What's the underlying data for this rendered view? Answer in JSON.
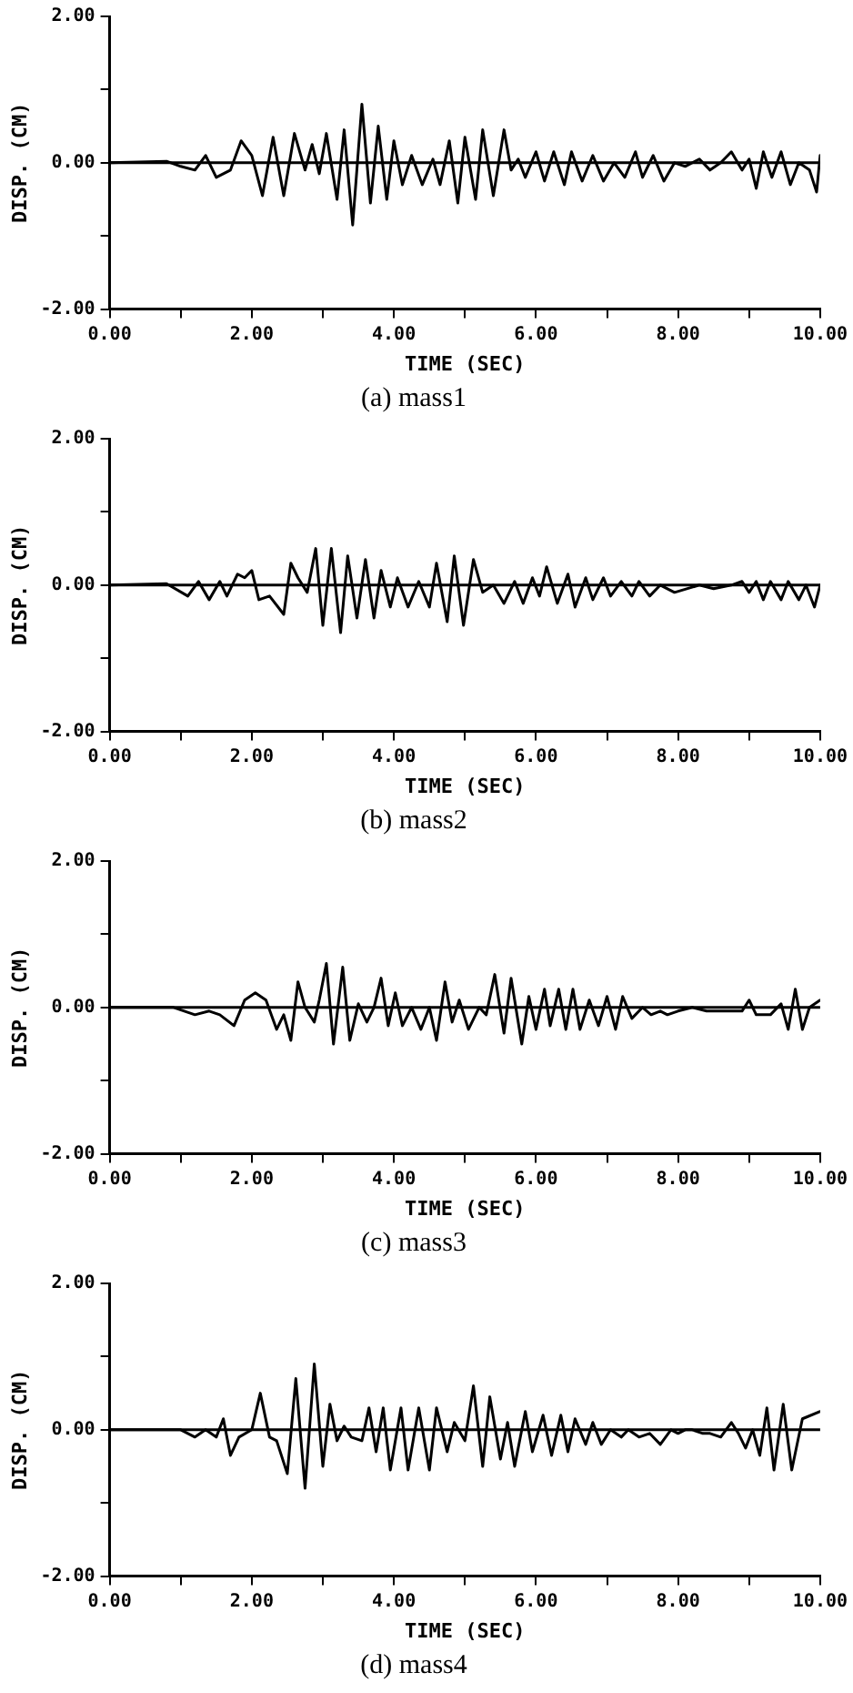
{
  "chart_data": [
    {
      "type": "line",
      "title": "(a) mass1",
      "xlabel": "TIME (SEC)",
      "ylabel": "DISP. (CM)",
      "x": [
        0,
        0.8,
        1.0,
        1.2,
        1.35,
        1.5,
        1.7,
        1.85,
        2.0,
        2.15,
        2.3,
        2.45,
        2.6,
        2.75,
        2.85,
        2.95,
        3.05,
        3.2,
        3.3,
        3.42,
        3.55,
        3.67,
        3.78,
        3.9,
        4.0,
        4.12,
        4.25,
        4.4,
        4.55,
        4.65,
        4.78,
        4.9,
        5.0,
        5.15,
        5.25,
        5.4,
        5.55,
        5.65,
        5.75,
        5.85,
        6.0,
        6.12,
        6.25,
        6.4,
        6.5,
        6.65,
        6.8,
        6.95,
        7.1,
        7.25,
        7.4,
        7.5,
        7.65,
        7.8,
        7.95,
        8.1,
        8.3,
        8.45,
        8.6,
        8.75,
        8.9,
        9.0,
        9.1,
        9.2,
        9.32,
        9.45,
        9.58,
        9.7,
        9.85,
        9.95,
        10
      ],
      "series": [
        {
          "color": "#000000",
          "values": [
            0,
            0.02,
            -0.05,
            -0.1,
            0.1,
            -0.2,
            -0.1,
            0.3,
            0.1,
            -0.45,
            0.35,
            -0.45,
            0.4,
            -0.1,
            0.25,
            -0.15,
            0.4,
            -0.5,
            0.45,
            -0.85,
            0.8,
            -0.55,
            0.5,
            -0.5,
            0.3,
            -0.3,
            0.1,
            -0.3,
            0.05,
            -0.3,
            0.3,
            -0.55,
            0.35,
            -0.5,
            0.45,
            -0.45,
            0.45,
            -0.1,
            0.05,
            -0.2,
            0.15,
            -0.25,
            0.15,
            -0.3,
            0.15,
            -0.25,
            0.1,
            -0.25,
            0.0,
            -0.2,
            0.15,
            -0.2,
            0.1,
            -0.25,
            0.0,
            -0.05,
            0.05,
            -0.1,
            0.0,
            0.15,
            -0.1,
            0.05,
            -0.35,
            0.15,
            -0.2,
            0.15,
            -0.3,
            0.0,
            -0.1,
            -0.4,
            0.1
          ]
        }
      ],
      "xlim": [
        0,
        10
      ],
      "ylim": [
        -2,
        2
      ],
      "xticks": [
        {
          "value": 0,
          "label": "0.00"
        },
        {
          "value": 1,
          "label": null
        },
        {
          "value": 2,
          "label": "2.00"
        },
        {
          "value": 3,
          "label": null
        },
        {
          "value": 4,
          "label": "4.00"
        },
        {
          "value": 5,
          "label": null
        },
        {
          "value": 6,
          "label": "6.00"
        },
        {
          "value": 7,
          "label": null
        },
        {
          "value": 8,
          "label": "8.00"
        },
        {
          "value": 9,
          "label": null
        },
        {
          "value": 10,
          "label": "10.00"
        }
      ],
      "yticks": [
        {
          "value": -2,
          "label": "-2.00"
        },
        {
          "value": -1,
          "label": null
        },
        {
          "value": 0,
          "label": "0.00"
        },
        {
          "value": 1,
          "label": null
        },
        {
          "value": 2,
          "label": "2.00"
        }
      ],
      "ref_lines": [
        {
          "axis": "y",
          "value": 0
        }
      ],
      "grid": false,
      "marker": "none",
      "line_style": "solid"
    },
    {
      "type": "line",
      "title": "(b) mass2",
      "xlabel": "TIME (SEC)",
      "ylabel": "DISP. (CM)",
      "x": [
        0,
        0.8,
        1.1,
        1.25,
        1.4,
        1.55,
        1.65,
        1.8,
        1.9,
        2.0,
        2.1,
        2.25,
        2.45,
        2.55,
        2.65,
        2.78,
        2.9,
        3.0,
        3.12,
        3.25,
        3.35,
        3.48,
        3.6,
        3.72,
        3.82,
        3.95,
        4.05,
        4.2,
        4.35,
        4.5,
        4.6,
        4.75,
        4.85,
        4.98,
        5.12,
        5.25,
        5.4,
        5.55,
        5.7,
        5.82,
        5.95,
        6.05,
        6.15,
        6.3,
        6.45,
        6.55,
        6.7,
        6.8,
        6.95,
        7.05,
        7.2,
        7.35,
        7.45,
        7.6,
        7.75,
        7.95,
        8.3,
        8.5,
        8.75,
        8.9,
        9.0,
        9.1,
        9.2,
        9.3,
        9.45,
        9.55,
        9.7,
        9.8,
        9.92,
        10
      ],
      "series": [
        {
          "color": "#000000",
          "values": [
            0,
            0.02,
            -0.15,
            0.05,
            -0.2,
            0.05,
            -0.15,
            0.15,
            0.1,
            0.2,
            -0.2,
            -0.15,
            -0.4,
            0.3,
            0.1,
            -0.1,
            0.5,
            -0.55,
            0.5,
            -0.65,
            0.4,
            -0.45,
            0.35,
            -0.45,
            0.2,
            -0.3,
            0.1,
            -0.3,
            0.05,
            -0.3,
            0.3,
            -0.5,
            0.4,
            -0.55,
            0.35,
            -0.1,
            0.0,
            -0.25,
            0.05,
            -0.25,
            0.1,
            -0.15,
            0.25,
            -0.25,
            0.15,
            -0.3,
            0.1,
            -0.2,
            0.1,
            -0.15,
            0.05,
            -0.15,
            0.05,
            -0.15,
            0.0,
            -0.1,
            0.0,
            -0.05,
            0.0,
            0.05,
            -0.1,
            0.05,
            -0.2,
            0.05,
            -0.2,
            0.05,
            -0.2,
            0.0,
            -0.3,
            0.0
          ]
        }
      ],
      "xlim": [
        0,
        10
      ],
      "ylim": [
        -2,
        2
      ],
      "xticks": [
        {
          "value": 0,
          "label": "0.00"
        },
        {
          "value": 1,
          "label": null
        },
        {
          "value": 2,
          "label": "2.00"
        },
        {
          "value": 3,
          "label": null
        },
        {
          "value": 4,
          "label": "4.00"
        },
        {
          "value": 5,
          "label": null
        },
        {
          "value": 6,
          "label": "6.00"
        },
        {
          "value": 7,
          "label": null
        },
        {
          "value": 8,
          "label": "8.00"
        },
        {
          "value": 9,
          "label": null
        },
        {
          "value": 10,
          "label": "10.00"
        }
      ],
      "yticks": [
        {
          "value": -2,
          "label": "-2.00"
        },
        {
          "value": -1,
          "label": null
        },
        {
          "value": 0,
          "label": "0.00"
        },
        {
          "value": 1,
          "label": null
        },
        {
          "value": 2,
          "label": "2.00"
        }
      ],
      "ref_lines": [
        {
          "axis": "y",
          "value": 0
        }
      ],
      "grid": false,
      "marker": "none",
      "line_style": "solid"
    },
    {
      "type": "line",
      "title": "(c) mass3",
      "xlabel": "TIME (SEC)",
      "ylabel": "DISP. (CM)",
      "x": [
        0,
        0.9,
        1.2,
        1.4,
        1.55,
        1.75,
        1.9,
        2.05,
        2.2,
        2.35,
        2.45,
        2.55,
        2.65,
        2.75,
        2.88,
        2.95,
        3.05,
        3.15,
        3.28,
        3.38,
        3.5,
        3.62,
        3.72,
        3.82,
        3.92,
        4.02,
        4.12,
        4.25,
        4.38,
        4.5,
        4.6,
        4.72,
        4.82,
        4.92,
        5.05,
        5.2,
        5.3,
        5.42,
        5.55,
        5.65,
        5.8,
        5.9,
        6.0,
        6.12,
        6.2,
        6.32,
        6.42,
        6.52,
        6.62,
        6.75,
        6.88,
        7.0,
        7.12,
        7.22,
        7.35,
        7.5,
        7.62,
        7.75,
        7.85,
        8.0,
        8.2,
        8.4,
        8.7,
        8.9,
        9.0,
        9.1,
        9.3,
        9.45,
        9.55,
        9.65,
        9.75,
        9.85,
        10
      ],
      "series": [
        {
          "color": "#000000",
          "values": [
            0,
            0.0,
            -0.1,
            -0.05,
            -0.1,
            -0.25,
            0.1,
            0.2,
            0.1,
            -0.3,
            -0.1,
            -0.45,
            0.35,
            0.0,
            -0.2,
            0.1,
            0.6,
            -0.5,
            0.55,
            -0.45,
            0.05,
            -0.2,
            0.0,
            0.4,
            -0.25,
            0.2,
            -0.25,
            0.0,
            -0.3,
            0.0,
            -0.45,
            0.35,
            -0.2,
            0.1,
            -0.3,
            0.0,
            -0.1,
            0.45,
            -0.35,
            0.4,
            -0.5,
            0.15,
            -0.3,
            0.25,
            -0.25,
            0.25,
            -0.3,
            0.25,
            -0.3,
            0.1,
            -0.25,
            0.15,
            -0.3,
            0.15,
            -0.15,
            0.0,
            -0.1,
            -0.05,
            -0.1,
            -0.05,
            0.0,
            -0.05,
            -0.05,
            -0.05,
            0.1,
            -0.1,
            -0.1,
            0.05,
            -0.3,
            0.25,
            -0.3,
            0.0,
            0.1
          ]
        }
      ],
      "xlim": [
        0,
        10
      ],
      "ylim": [
        -2,
        2
      ],
      "xticks": [
        {
          "value": 0,
          "label": "0.00"
        },
        {
          "value": 1,
          "label": null
        },
        {
          "value": 2,
          "label": "2.00"
        },
        {
          "value": 3,
          "label": null
        },
        {
          "value": 4,
          "label": "4.00"
        },
        {
          "value": 5,
          "label": null
        },
        {
          "value": 6,
          "label": "6.00"
        },
        {
          "value": 7,
          "label": null
        },
        {
          "value": 8,
          "label": "8.00"
        },
        {
          "value": 9,
          "label": null
        },
        {
          "value": 10,
          "label": "10.00"
        }
      ],
      "yticks": [
        {
          "value": -2,
          "label": "-2.00"
        },
        {
          "value": -1,
          "label": null
        },
        {
          "value": 0,
          "label": "0.00"
        },
        {
          "value": 1,
          "label": null
        },
        {
          "value": 2,
          "label": "2.00"
        }
      ],
      "ref_lines": [
        {
          "axis": "y",
          "value": 0
        }
      ],
      "grid": false,
      "marker": "none",
      "line_style": "solid"
    },
    {
      "type": "line",
      "title": "(d) mass4",
      "xlabel": "TIME (SEC)",
      "ylabel": "DISP. (CM)",
      "x": [
        0,
        1.0,
        1.2,
        1.35,
        1.5,
        1.6,
        1.7,
        1.82,
        2.0,
        2.12,
        2.25,
        2.35,
        2.5,
        2.62,
        2.75,
        2.88,
        3.0,
        3.1,
        3.2,
        3.3,
        3.4,
        3.55,
        3.65,
        3.75,
        3.85,
        3.95,
        4.1,
        4.2,
        4.35,
        4.5,
        4.6,
        4.75,
        4.85,
        5.0,
        5.12,
        5.25,
        5.35,
        5.5,
        5.6,
        5.7,
        5.85,
        5.95,
        6.1,
        6.22,
        6.35,
        6.45,
        6.55,
        6.7,
        6.8,
        6.92,
        7.05,
        7.2,
        7.3,
        7.45,
        7.6,
        7.75,
        7.9,
        8.0,
        8.1,
        8.2,
        8.35,
        8.45,
        8.6,
        8.75,
        8.85,
        8.95,
        9.05,
        9.15,
        9.25,
        9.35,
        9.48,
        9.6,
        9.75,
        10
      ],
      "series": [
        {
          "color": "#000000",
          "values": [
            0,
            0.0,
            -0.1,
            0.0,
            -0.1,
            0.15,
            -0.35,
            -0.1,
            0.0,
            0.5,
            -0.1,
            -0.15,
            -0.6,
            0.7,
            -0.8,
            0.9,
            -0.5,
            0.35,
            -0.15,
            0.05,
            -0.1,
            -0.15,
            0.3,
            -0.3,
            0.3,
            -0.55,
            0.3,
            -0.55,
            0.3,
            -0.55,
            0.3,
            -0.3,
            0.1,
            -0.15,
            0.6,
            -0.5,
            0.45,
            -0.4,
            0.1,
            -0.5,
            0.25,
            -0.3,
            0.2,
            -0.35,
            0.2,
            -0.3,
            0.15,
            -0.2,
            0.1,
            -0.2,
            0.0,
            -0.1,
            0.0,
            -0.1,
            -0.05,
            -0.2,
            0.0,
            -0.05,
            0.0,
            0.0,
            -0.05,
            -0.05,
            -0.1,
            0.1,
            -0.05,
            -0.25,
            0.0,
            -0.35,
            0.3,
            -0.55,
            0.35,
            -0.55,
            0.15,
            0.25
          ]
        }
      ],
      "xlim": [
        0,
        10
      ],
      "ylim": [
        -2,
        2
      ],
      "xticks": [
        {
          "value": 0,
          "label": "0.00"
        },
        {
          "value": 1,
          "label": null
        },
        {
          "value": 2,
          "label": "2.00"
        },
        {
          "value": 3,
          "label": null
        },
        {
          "value": 4,
          "label": "4.00"
        },
        {
          "value": 5,
          "label": null
        },
        {
          "value": 6,
          "label": "6.00"
        },
        {
          "value": 7,
          "label": null
        },
        {
          "value": 8,
          "label": "8.00"
        },
        {
          "value": 9,
          "label": null
        },
        {
          "value": 10,
          "label": "10.00"
        }
      ],
      "yticks": [
        {
          "value": -2,
          "label": "-2.00"
        },
        {
          "value": -1,
          "label": null
        },
        {
          "value": 0,
          "label": "0.00"
        },
        {
          "value": 1,
          "label": null
        },
        {
          "value": 2,
          "label": "2.00"
        }
      ],
      "ref_lines": [
        {
          "axis": "y",
          "value": 0
        }
      ],
      "grid": false,
      "marker": "none",
      "line_style": "solid"
    }
  ]
}
